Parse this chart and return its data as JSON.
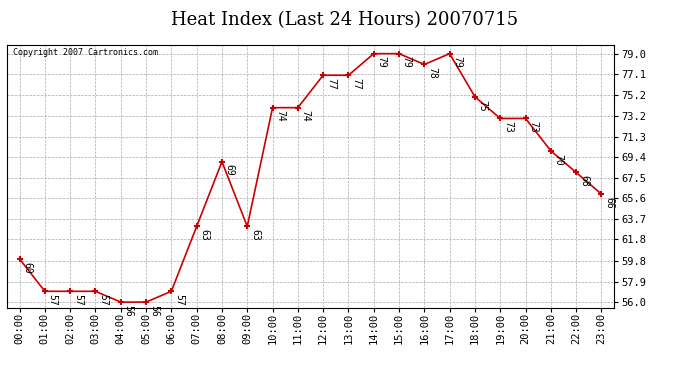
{
  "title": "Heat Index (Last 24 Hours) 20070715",
  "copyright": "Copyright 2007 Cartronics.com",
  "hours": [
    "00:00",
    "01:00",
    "02:00",
    "03:00",
    "04:00",
    "05:00",
    "06:00",
    "07:00",
    "08:00",
    "09:00",
    "10:00",
    "11:00",
    "12:00",
    "13:00",
    "14:00",
    "15:00",
    "16:00",
    "17:00",
    "18:00",
    "19:00",
    "20:00",
    "21:00",
    "22:00",
    "23:00"
  ],
  "values": [
    60,
    57,
    57,
    57,
    56,
    56,
    57,
    63,
    69,
    63,
    74,
    74,
    77,
    77,
    79,
    79,
    78,
    79,
    75,
    73,
    73,
    70,
    68,
    66
  ],
  "line_color": "#cc0000",
  "marker": "+",
  "marker_color": "#cc0000",
  "bg_color": "#ffffff",
  "plot_bg_color": "#ffffff",
  "grid_color": "#aaaaaa",
  "yticks": [
    56.0,
    57.9,
    59.8,
    61.8,
    63.7,
    65.6,
    67.5,
    69.4,
    71.3,
    73.2,
    75.2,
    77.1,
    79.0
  ],
  "ylim": [
    55.5,
    79.8
  ],
  "title_fontsize": 13,
  "label_fontsize": 7.5,
  "annotation_fontsize": 7
}
